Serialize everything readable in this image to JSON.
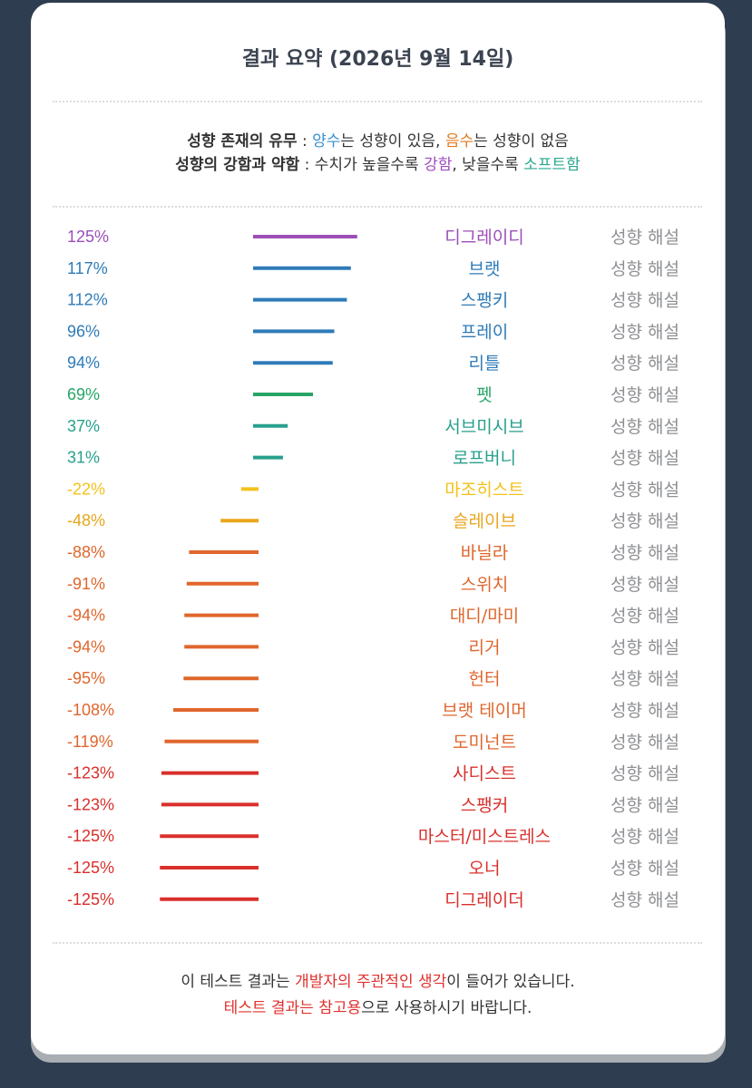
{
  "title": "결과 요약 (2026년 9월 14일)",
  "legend": {
    "line1": {
      "label": "성향 존재의 유무",
      "sep": " : ",
      "positive": "양수",
      "t1": "는 성향이 있음, ",
      "negative": "음수",
      "t2": "는 성향이 없음"
    },
    "line2": {
      "label": "성향의 강함과 약함",
      "sep": " : ",
      "t1": "수치가 높을수록 ",
      "strong": "강함",
      "t2": ", 낮을수록 ",
      "soft": "소프트함"
    }
  },
  "link_label": "성향 해설",
  "colors": {
    "purple": "#9b4fb8",
    "blue": "#2e7bb8",
    "green": "#27a567",
    "teal": "#27a08c",
    "yellow": "#f2c21b",
    "amber": "#e8a61c",
    "orange": "#e0662c",
    "red": "#d9302c",
    "gray": "#8e9093"
  },
  "chart_data": {
    "type": "bar",
    "orientation": "horizontal",
    "unit": "%",
    "xlim": [
      -125,
      125
    ],
    "rows": [
      {
        "value": 125,
        "label": "125%",
        "name": "디그레이디",
        "color": "purple"
      },
      {
        "value": 117,
        "label": "117%",
        "name": "브랫",
        "color": "blue"
      },
      {
        "value": 112,
        "label": "112%",
        "name": "스팽키",
        "color": "blue"
      },
      {
        "value": 96,
        "label": "96%",
        "name": "프레이",
        "color": "blue"
      },
      {
        "value": 94,
        "label": "94%",
        "name": "리틀",
        "color": "blue"
      },
      {
        "value": 69,
        "label": "69%",
        "name": "펫",
        "color": "green"
      },
      {
        "value": 37,
        "label": "37%",
        "name": "서브미시브",
        "color": "teal"
      },
      {
        "value": 31,
        "label": "31%",
        "name": "로프버니",
        "color": "teal"
      },
      {
        "value": -22,
        "label": "-22%",
        "name": "마조히스트",
        "color": "yellow"
      },
      {
        "value": -48,
        "label": "-48%",
        "name": "슬레이브",
        "color": "amber"
      },
      {
        "value": -88,
        "label": "-88%",
        "name": "바닐라",
        "color": "orange"
      },
      {
        "value": -91,
        "label": "-91%",
        "name": "스위치",
        "color": "orange"
      },
      {
        "value": -94,
        "label": "-94%",
        "name": "대디/마미",
        "color": "orange"
      },
      {
        "value": -94,
        "label": "-94%",
        "name": "리거",
        "color": "orange"
      },
      {
        "value": -95,
        "label": "-95%",
        "name": "헌터",
        "color": "orange"
      },
      {
        "value": -108,
        "label": "-108%",
        "name": "브랫 테이머",
        "color": "orange"
      },
      {
        "value": -119,
        "label": "-119%",
        "name": "도미넌트",
        "color": "orange"
      },
      {
        "value": -123,
        "label": "-123%",
        "name": "사디스트",
        "color": "red"
      },
      {
        "value": -123,
        "label": "-123%",
        "name": "스팽커",
        "color": "red"
      },
      {
        "value": -125,
        "label": "-125%",
        "name": "마스터/미스트레스",
        "color": "red"
      },
      {
        "value": -125,
        "label": "-125%",
        "name": "오너",
        "color": "red"
      },
      {
        "value": -125,
        "label": "-125%",
        "name": "디그레이더",
        "color": "red"
      }
    ]
  },
  "footer": {
    "line1_a": "이 테스트 결과는 ",
    "line1_b": "개발자의 주관적인 생각",
    "line1_c": "이 들어가 있습니다.",
    "line2_a": "테스트 결과는 참고용",
    "line2_b": "으로 사용하시기 바랍니다."
  }
}
